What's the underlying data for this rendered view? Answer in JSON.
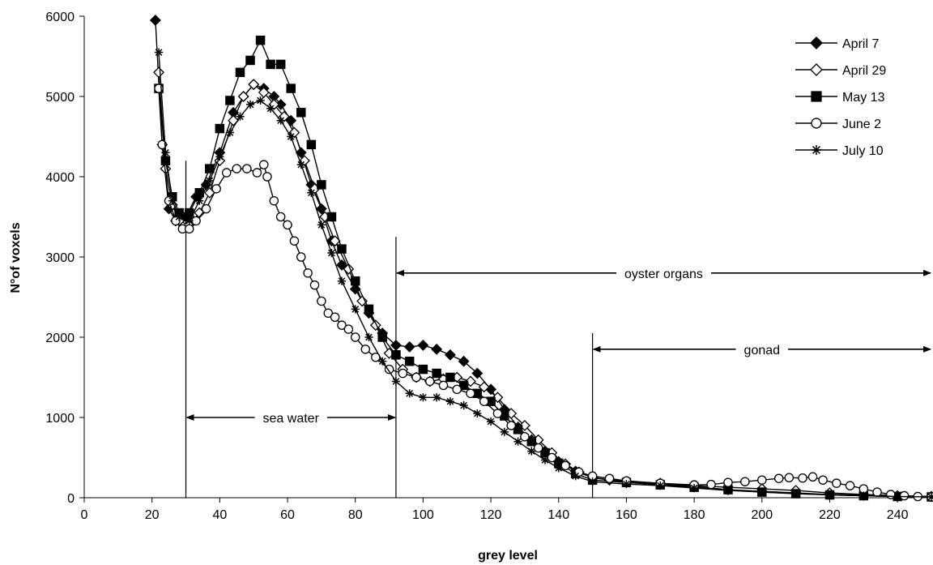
{
  "chart_data": {
    "type": "line",
    "title": "",
    "xlabel": "grey level",
    "ylabel": "N°of voxels",
    "xlim": [
      0,
      250
    ],
    "ylim": [
      0,
      6000
    ],
    "xticks": [
      0,
      20,
      40,
      60,
      80,
      100,
      120,
      140,
      160,
      180,
      200,
      220,
      240
    ],
    "yticks": [
      0,
      1000,
      2000,
      3000,
      4000,
      5000,
      6000
    ],
    "grid": false,
    "legend_position": "top-right",
    "colors": {
      "line": "#000000",
      "background": "#ffffff"
    },
    "series": [
      {
        "name": "April 7",
        "marker": "filled-diamond",
        "points": [
          [
            21,
            5950
          ],
          [
            23,
            4400
          ],
          [
            25,
            3600
          ],
          [
            27,
            3450
          ],
          [
            30,
            3500
          ],
          [
            33,
            3750
          ],
          [
            36,
            3900
          ],
          [
            40,
            4300
          ],
          [
            44,
            4800
          ],
          [
            47,
            5000
          ],
          [
            50,
            5150
          ],
          [
            53,
            5100
          ],
          [
            56,
            5000
          ],
          [
            58,
            4900
          ],
          [
            61,
            4700
          ],
          [
            64,
            4300
          ],
          [
            67,
            3900
          ],
          [
            70,
            3600
          ],
          [
            73,
            3200
          ],
          [
            76,
            2900
          ],
          [
            80,
            2600
          ],
          [
            84,
            2300
          ],
          [
            88,
            2050
          ],
          [
            92,
            1900
          ],
          [
            96,
            1880
          ],
          [
            100,
            1900
          ],
          [
            104,
            1850
          ],
          [
            108,
            1780
          ],
          [
            112,
            1700
          ],
          [
            116,
            1550
          ],
          [
            120,
            1350
          ],
          [
            124,
            1100
          ],
          [
            128,
            880
          ],
          [
            132,
            720
          ],
          [
            136,
            580
          ],
          [
            140,
            450
          ],
          [
            145,
            330
          ],
          [
            150,
            250
          ],
          [
            155,
            220
          ],
          [
            160,
            200
          ],
          [
            170,
            170
          ],
          [
            180,
            140
          ],
          [
            190,
            100
          ],
          [
            200,
            80
          ],
          [
            210,
            60
          ],
          [
            220,
            40
          ],
          [
            230,
            30
          ],
          [
            240,
            20
          ],
          [
            250,
            15
          ]
        ]
      },
      {
        "name": "April 29",
        "marker": "open-diamond",
        "points": [
          [
            22,
            5300
          ],
          [
            24,
            4100
          ],
          [
            26,
            3650
          ],
          [
            28,
            3450
          ],
          [
            31,
            3400
          ],
          [
            34,
            3550
          ],
          [
            37,
            3800
          ],
          [
            40,
            4200
          ],
          [
            44,
            4700
          ],
          [
            47,
            5000
          ],
          [
            50,
            5150
          ],
          [
            53,
            5050
          ],
          [
            56,
            4900
          ],
          [
            59,
            4750
          ],
          [
            62,
            4550
          ],
          [
            65,
            4200
          ],
          [
            68,
            3850
          ],
          [
            71,
            3500
          ],
          [
            74,
            3200
          ],
          [
            78,
            2850
          ],
          [
            82,
            2450
          ],
          [
            86,
            2150
          ],
          [
            90,
            1800
          ],
          [
            94,
            1600
          ],
          [
            98,
            1500
          ],
          [
            102,
            1450
          ],
          [
            106,
            1480
          ],
          [
            110,
            1500
          ],
          [
            114,
            1450
          ],
          [
            118,
            1380
          ],
          [
            122,
            1250
          ],
          [
            126,
            1050
          ],
          [
            130,
            900
          ],
          [
            134,
            720
          ],
          [
            138,
            560
          ],
          [
            142,
            420
          ],
          [
            146,
            320
          ],
          [
            150,
            250
          ],
          [
            160,
            200
          ],
          [
            170,
            180
          ],
          [
            180,
            150
          ],
          [
            190,
            130
          ],
          [
            200,
            110
          ],
          [
            210,
            90
          ],
          [
            220,
            60
          ],
          [
            230,
            40
          ],
          [
            240,
            25
          ],
          [
            250,
            15
          ]
        ]
      },
      {
        "name": "May 13",
        "marker": "filled-square",
        "points": [
          [
            22,
            5100
          ],
          [
            24,
            4200
          ],
          [
            26,
            3750
          ],
          [
            28,
            3550
          ],
          [
            31,
            3550
          ],
          [
            34,
            3800
          ],
          [
            37,
            4100
          ],
          [
            40,
            4600
          ],
          [
            43,
            4950
          ],
          [
            46,
            5300
          ],
          [
            49,
            5450
          ],
          [
            52,
            5700
          ],
          [
            55,
            5400
          ],
          [
            58,
            5400
          ],
          [
            61,
            5100
          ],
          [
            64,
            4800
          ],
          [
            67,
            4400
          ],
          [
            70,
            3900
          ],
          [
            73,
            3500
          ],
          [
            76,
            3100
          ],
          [
            80,
            2700
          ],
          [
            84,
            2350
          ],
          [
            88,
            2000
          ],
          [
            92,
            1780
          ],
          [
            96,
            1700
          ],
          [
            100,
            1600
          ],
          [
            104,
            1550
          ],
          [
            108,
            1500
          ],
          [
            112,
            1400
          ],
          [
            116,
            1300
          ],
          [
            120,
            1200
          ],
          [
            124,
            1020
          ],
          [
            128,
            850
          ],
          [
            132,
            700
          ],
          [
            136,
            560
          ],
          [
            140,
            430
          ],
          [
            145,
            300
          ],
          [
            150,
            220
          ],
          [
            160,
            190
          ],
          [
            170,
            160
          ],
          [
            180,
            130
          ],
          [
            190,
            100
          ],
          [
            200,
            70
          ],
          [
            210,
            50
          ],
          [
            220,
            35
          ],
          [
            230,
            25
          ],
          [
            240,
            15
          ],
          [
            250,
            10
          ]
        ]
      },
      {
        "name": "June 2",
        "marker": "open-circle",
        "points": [
          [
            22,
            5100
          ],
          [
            23,
            4400
          ],
          [
            25,
            3700
          ],
          [
            27,
            3450
          ],
          [
            29,
            3350
          ],
          [
            31,
            3350
          ],
          [
            33,
            3450
          ],
          [
            36,
            3600
          ],
          [
            39,
            3850
          ],
          [
            42,
            4050
          ],
          [
            45,
            4100
          ],
          [
            48,
            4100
          ],
          [
            51,
            4050
          ],
          [
            53,
            4150
          ],
          [
            54,
            4000
          ],
          [
            56,
            3700
          ],
          [
            58,
            3500
          ],
          [
            60,
            3400
          ],
          [
            62,
            3200
          ],
          [
            64,
            3000
          ],
          [
            66,
            2800
          ],
          [
            68,
            2650
          ],
          [
            70,
            2450
          ],
          [
            72,
            2300
          ],
          [
            74,
            2250
          ],
          [
            76,
            2150
          ],
          [
            78,
            2100
          ],
          [
            80,
            2000
          ],
          [
            83,
            1850
          ],
          [
            86,
            1750
          ],
          [
            90,
            1600
          ],
          [
            94,
            1550
          ],
          [
            98,
            1500
          ],
          [
            102,
            1450
          ],
          [
            106,
            1400
          ],
          [
            110,
            1350
          ],
          [
            114,
            1300
          ],
          [
            118,
            1200
          ],
          [
            122,
            1050
          ],
          [
            126,
            900
          ],
          [
            130,
            760
          ],
          [
            134,
            620
          ],
          [
            138,
            500
          ],
          [
            142,
            400
          ],
          [
            146,
            320
          ],
          [
            150,
            270
          ],
          [
            155,
            240
          ],
          [
            160,
            210
          ],
          [
            170,
            180
          ],
          [
            180,
            160
          ],
          [
            185,
            165
          ],
          [
            190,
            190
          ],
          [
            195,
            200
          ],
          [
            200,
            220
          ],
          [
            205,
            240
          ],
          [
            208,
            250
          ],
          [
            212,
            245
          ],
          [
            215,
            260
          ],
          [
            218,
            220
          ],
          [
            222,
            180
          ],
          [
            226,
            150
          ],
          [
            230,
            110
          ],
          [
            234,
            70
          ],
          [
            238,
            40
          ],
          [
            242,
            25
          ],
          [
            246,
            15
          ],
          [
            250,
            10
          ]
        ]
      },
      {
        "name": "July 10",
        "marker": "star",
        "points": [
          [
            22,
            5550
          ],
          [
            24,
            4300
          ],
          [
            26,
            3700
          ],
          [
            28,
            3500
          ],
          [
            31,
            3450
          ],
          [
            34,
            3700
          ],
          [
            37,
            3950
          ],
          [
            40,
            4250
          ],
          [
            43,
            4550
          ],
          [
            46,
            4750
          ],
          [
            49,
            4900
          ],
          [
            52,
            4950
          ],
          [
            55,
            4850
          ],
          [
            58,
            4700
          ],
          [
            61,
            4500
          ],
          [
            64,
            4150
          ],
          [
            67,
            3800
          ],
          [
            70,
            3400
          ],
          [
            73,
            3050
          ],
          [
            76,
            2700
          ],
          [
            80,
            2350
          ],
          [
            84,
            2000
          ],
          [
            88,
            1700
          ],
          [
            92,
            1450
          ],
          [
            96,
            1300
          ],
          [
            100,
            1250
          ],
          [
            104,
            1250
          ],
          [
            108,
            1200
          ],
          [
            112,
            1150
          ],
          [
            116,
            1050
          ],
          [
            120,
            950
          ],
          [
            124,
            820
          ],
          [
            128,
            700
          ],
          [
            132,
            580
          ],
          [
            136,
            470
          ],
          [
            140,
            370
          ],
          [
            145,
            270
          ],
          [
            150,
            200
          ],
          [
            160,
            170
          ],
          [
            170,
            150
          ],
          [
            180,
            120
          ],
          [
            190,
            90
          ],
          [
            200,
            70
          ],
          [
            210,
            50
          ],
          [
            220,
            35
          ],
          [
            230,
            25
          ],
          [
            240,
            15
          ],
          [
            250,
            10
          ]
        ]
      }
    ],
    "annotations": [
      {
        "label": "sea water",
        "from": 30,
        "to": 92,
        "y": 1000
      },
      {
        "label": "oyster organs",
        "from": 92,
        "to": 250,
        "y": 2800
      },
      {
        "label": "gonad",
        "from": 150,
        "to": 250,
        "y": 1850
      }
    ],
    "boundaries": [
      {
        "x": 30,
        "top": 4200
      },
      {
        "x": 92,
        "top": 3250
      },
      {
        "x": 150,
        "top": 2050
      }
    ]
  }
}
